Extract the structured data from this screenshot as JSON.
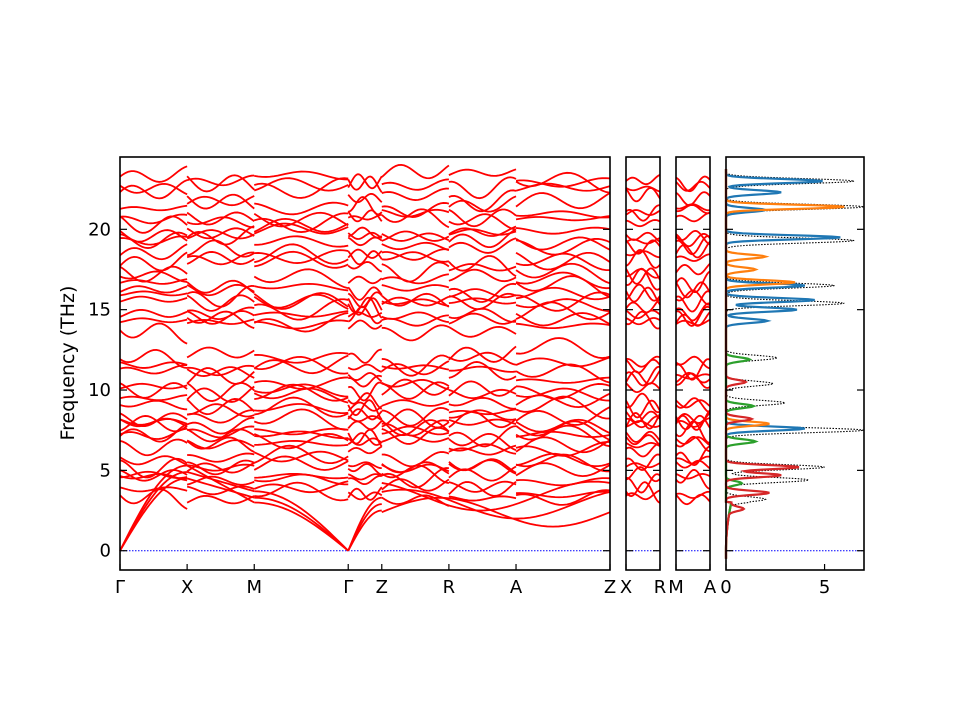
{
  "chart_data": {
    "type": "line",
    "ylabel": "Frequency (THz)",
    "ylim": [
      -1.2,
      24.5
    ],
    "yticks": [
      0,
      5,
      10,
      15,
      20
    ],
    "ytick_labels": [
      "0",
      "5",
      "10",
      "15",
      "20"
    ],
    "band_color": "#ff0000",
    "zero_line_color": "#0000ff",
    "panels": [
      {
        "id": "main",
        "x_range": [
          0,
          7.3
        ],
        "path_ticks": [
          {
            "label": "Γ",
            "x": 0
          },
          {
            "label": "X",
            "x": 1
          },
          {
            "label": "M",
            "x": 2
          },
          {
            "label": "Γ",
            "x": 3.4
          },
          {
            "label": "Z",
            "x": 3.9
          },
          {
            "label": "R",
            "x": 4.9
          },
          {
            "label": "A",
            "x": 5.9
          },
          {
            "label": "Z",
            "x": 7.3
          }
        ]
      },
      {
        "id": "x-r",
        "x_range": [
          0,
          1
        ],
        "path_ticks": [
          {
            "label": "X",
            "x": 0
          },
          {
            "label": "R",
            "x": 1
          }
        ]
      },
      {
        "id": "m-a",
        "x_range": [
          0,
          1
        ],
        "path_ticks": [
          {
            "label": "M",
            "x": 0
          },
          {
            "label": "A",
            "x": 1
          }
        ]
      }
    ],
    "dos_panel": {
      "xlim": [
        0,
        7
      ],
      "xticks": [
        0,
        5
      ],
      "xtick_labels": [
        "0",
        "5"
      ],
      "series_colors": [
        "#1f77b4",
        "#ff7f0e",
        "#2ca02c",
        "#d62728"
      ],
      "total_color": "#000000",
      "peaks": [
        {
          "series": 0,
          "freq": 23.0,
          "height": 4.9
        },
        {
          "series": 0,
          "freq": 22.3,
          "height": 2.8
        },
        {
          "series": 1,
          "freq": 21.4,
          "height": 6.0
        },
        {
          "series": 0,
          "freq": 21.2,
          "height": 2.0
        },
        {
          "series": 0,
          "freq": 19.5,
          "height": 5.8
        },
        {
          "series": 1,
          "freq": 18.3,
          "height": 2.0
        },
        {
          "series": 1,
          "freq": 17.5,
          "height": 1.5
        },
        {
          "series": 1,
          "freq": 16.7,
          "height": 3.5
        },
        {
          "series": 0,
          "freq": 16.5,
          "height": 4.0
        },
        {
          "series": 0,
          "freq": 15.6,
          "height": 4.5
        },
        {
          "series": 0,
          "freq": 15.0,
          "height": 3.6
        },
        {
          "series": 0,
          "freq": 14.3,
          "height": 2.1
        },
        {
          "series": 2,
          "freq": 11.9,
          "height": 1.2
        },
        {
          "series": 3,
          "freq": 10.5,
          "height": 1.0
        },
        {
          "series": 2,
          "freq": 9.0,
          "height": 1.4
        },
        {
          "series": 3,
          "freq": 8.2,
          "height": 1.3
        },
        {
          "series": 0,
          "freq": 7.6,
          "height": 4.0
        },
        {
          "series": 1,
          "freq": 7.9,
          "height": 2.2
        },
        {
          "series": 2,
          "freq": 6.8,
          "height": 1.5
        },
        {
          "series": 3,
          "freq": 5.2,
          "height": 3.7
        },
        {
          "series": 3,
          "freq": 4.7,
          "height": 2.8
        },
        {
          "series": 3,
          "freq": 3.6,
          "height": 2.2
        },
        {
          "series": 2,
          "freq": 4.2,
          "height": 0.8
        },
        {
          "series": 3,
          "freq": 2.6,
          "height": 0.7
        }
      ],
      "total_peaks": [
        {
          "freq": 23.0,
          "height": 6.5
        },
        {
          "freq": 21.4,
          "height": 7.0
        },
        {
          "freq": 19.3,
          "height": 6.5
        },
        {
          "freq": 16.5,
          "height": 5.5
        },
        {
          "freq": 15.4,
          "height": 6.0
        },
        {
          "freq": 12.0,
          "height": 2.6
        },
        {
          "freq": 10.4,
          "height": 2.4
        },
        {
          "freq": 9.2,
          "height": 3.0
        },
        {
          "freq": 7.5,
          "height": 7.0
        },
        {
          "freq": 5.2,
          "height": 5.0
        },
        {
          "freq": 4.4,
          "height": 4.2
        },
        {
          "freq": 3.2,
          "height": 2.0
        }
      ]
    }
  }
}
